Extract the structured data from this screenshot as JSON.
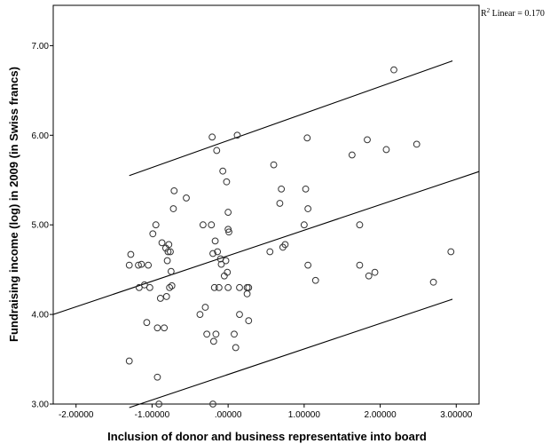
{
  "chart_data": {
    "type": "scatter",
    "title": "",
    "xlabel": "Inclusion of donor and business representative into board",
    "ylabel": "Fundraising income (log) in 2009 (in Swiss francs)",
    "xlim": [
      -2.3,
      3.3
    ],
    "ylim": [
      3.0,
      7.45
    ],
    "x_ticks": [
      -2.0,
      -1.0,
      0.0,
      1.0,
      2.0,
      3.0
    ],
    "x_tick_labels": [
      "-2.00000",
      "-1.00000",
      ".00000",
      "1.00000",
      "2.00000",
      "3.00000"
    ],
    "y_ticks": [
      3.0,
      4.0,
      5.0,
      6.0,
      7.0
    ],
    "y_tick_labels": [
      "3.00",
      "4.00",
      "5.00",
      "6.00",
      "7.00"
    ],
    "annotation": {
      "r2_prefix": "R",
      "r2_sup": "2",
      "r2_text": " Linear = 0.170"
    },
    "grid": false,
    "lines": [
      {
        "x": [
          -2.3,
          3.3
        ],
        "y": [
          4.0,
          5.595
        ]
      },
      {
        "x": [
          -1.3,
          2.95
        ],
        "y": [
          5.55,
          6.83
        ]
      },
      {
        "x": [
          -1.3,
          2.95
        ],
        "y": [
          2.96,
          4.17
        ]
      }
    ],
    "points": [
      [
        -1.3,
        3.48
      ],
      [
        -1.3,
        4.55
      ],
      [
        -1.28,
        4.67
      ],
      [
        -1.18,
        4.55
      ],
      [
        -1.17,
        4.3
      ],
      [
        -1.14,
        4.56
      ],
      [
        -1.1,
        4.33
      ],
      [
        -1.07,
        3.91
      ],
      [
        -1.05,
        4.55
      ],
      [
        -1.03,
        4.3
      ],
      [
        -0.99,
        4.9
      ],
      [
        -0.95,
        5.0
      ],
      [
        -0.93,
        3.85
      ],
      [
        -0.93,
        3.3
      ],
      [
        -0.91,
        3.0
      ],
      [
        -0.89,
        4.18
      ],
      [
        -0.87,
        4.8
      ],
      [
        -0.84,
        3.85
      ],
      [
        -0.82,
        4.74
      ],
      [
        -0.81,
        4.2
      ],
      [
        -0.8,
        4.6
      ],
      [
        -0.79,
        4.7
      ],
      [
        -0.78,
        4.78
      ],
      [
        -0.77,
        4.3
      ],
      [
        -0.76,
        4.7
      ],
      [
        -0.75,
        4.48
      ],
      [
        -0.74,
        4.32
      ],
      [
        -0.72,
        5.18
      ],
      [
        -0.71,
        5.38
      ],
      [
        -0.55,
        5.3
      ],
      [
        -0.37,
        4.0
      ],
      [
        -0.33,
        5.0
      ],
      [
        -0.3,
        4.08
      ],
      [
        -0.28,
        3.78
      ],
      [
        -0.22,
        5.0
      ],
      [
        -0.21,
        5.98
      ],
      [
        -0.2,
        3.0
      ],
      [
        -0.2,
        4.68
      ],
      [
        -0.19,
        3.7
      ],
      [
        -0.18,
        4.3
      ],
      [
        -0.17,
        4.82
      ],
      [
        -0.16,
        3.78
      ],
      [
        -0.15,
        5.83
      ],
      [
        -0.14,
        4.7
      ],
      [
        -0.12,
        4.3
      ],
      [
        -0.1,
        4.62
      ],
      [
        -0.09,
        4.56
      ],
      [
        -0.07,
        5.6
      ],
      [
        -0.05,
        4.43
      ],
      [
        -0.03,
        4.6
      ],
      [
        -0.02,
        5.48
      ],
      [
        -0.01,
        4.47
      ],
      [
        0.0,
        4.3
      ],
      [
        0.0,
        4.95
      ],
      [
        0.0,
        5.14
      ],
      [
        0.01,
        4.92
      ],
      [
        0.08,
        3.78
      ],
      [
        0.1,
        3.63
      ],
      [
        0.12,
        6.0
      ],
      [
        0.15,
        4.3
      ],
      [
        0.15,
        4.0
      ],
      [
        0.25,
        4.3
      ],
      [
        0.25,
        4.23
      ],
      [
        0.27,
        3.93
      ],
      [
        0.27,
        4.3
      ],
      [
        0.55,
        4.7
      ],
      [
        0.6,
        5.67
      ],
      [
        0.68,
        5.24
      ],
      [
        0.7,
        5.4
      ],
      [
        0.72,
        4.75
      ],
      [
        0.75,
        4.78
      ],
      [
        1.0,
        5.0
      ],
      [
        1.02,
        5.4
      ],
      [
        1.04,
        5.97
      ],
      [
        1.05,
        4.55
      ],
      [
        1.05,
        5.18
      ],
      [
        1.15,
        4.38
      ],
      [
        1.63,
        5.78
      ],
      [
        1.73,
        4.55
      ],
      [
        1.73,
        5.0
      ],
      [
        1.83,
        5.95
      ],
      [
        1.85,
        4.43
      ],
      [
        1.93,
        4.47
      ],
      [
        2.08,
        5.84
      ],
      [
        2.18,
        6.73
      ],
      [
        2.48,
        5.9
      ],
      [
        2.7,
        4.36
      ],
      [
        2.93,
        4.7
      ]
    ]
  }
}
